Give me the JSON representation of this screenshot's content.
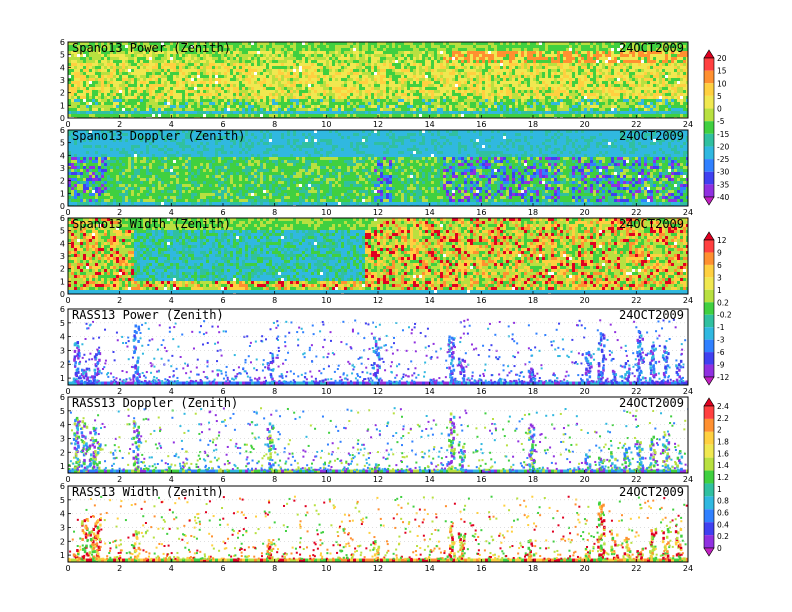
{
  "chart_data": [
    {
      "type": "heatmap",
      "title": "Spano13 Power (Zenith)",
      "date": "24OCT2009",
      "x_ticks": [
        "0",
        "2",
        "4",
        "6",
        "8",
        "10",
        "12",
        "14",
        "16",
        "18",
        "20",
        "22",
        "24"
      ],
      "y_ticks": [
        "0",
        "1",
        "2",
        "3",
        "4",
        "5",
        "6"
      ],
      "xlim": [
        0,
        24
      ],
      "ylim": [
        0,
        6
      ],
      "colorbar": "power",
      "grid": false,
      "description_bands": [
        {
          "y_from": 0,
          "y_to": 0.3,
          "value": 0
        },
        {
          "y_from": 0.3,
          "y_to": 1.5,
          "value": -5
        },
        {
          "y_from": 1.5,
          "y_to": 4.5,
          "value": 5
        },
        {
          "y_from": 4.5,
          "y_to": 6,
          "value": 0
        }
      ]
    },
    {
      "type": "heatmap",
      "title": "Spano13 Doppler (Zenith)",
      "date": "24OCT2009",
      "x_ticks": [
        "0",
        "2",
        "4",
        "6",
        "8",
        "10",
        "12",
        "14",
        "16",
        "18",
        "20",
        "22",
        "24"
      ],
      "y_ticks": [
        "0",
        "1",
        "2",
        "3",
        "4",
        "5",
        "6"
      ],
      "xlim": [
        0,
        24
      ],
      "ylim": [
        0,
        6
      ],
      "colorbar": "power"
    },
    {
      "type": "heatmap",
      "title": "Spano13 Width (Zenith)",
      "date": "24OCT2009",
      "x_ticks": [
        "0",
        "2",
        "4",
        "6",
        "8",
        "10",
        "12",
        "14",
        "16",
        "18",
        "20",
        "22",
        "24"
      ],
      "y_ticks": [
        "0",
        "1",
        "2",
        "3",
        "4",
        "5",
        "6"
      ],
      "xlim": [
        0,
        24
      ],
      "ylim": [
        0,
        6
      ],
      "colorbar": "width"
    },
    {
      "type": "heatmap",
      "title": "RASS13 Power (Zenith)",
      "date": "24OCT2009",
      "x_ticks": [
        "0",
        "2",
        "4",
        "6",
        "8",
        "10",
        "12",
        "14",
        "16",
        "18",
        "20",
        "22",
        "24"
      ],
      "y_ticks": [
        "1",
        "2",
        "3",
        "4",
        "5",
        "6"
      ],
      "xlim": [
        0,
        24
      ],
      "ylim": [
        0.5,
        6
      ],
      "colorbar": "width"
    },
    {
      "type": "heatmap",
      "title": "RASS13 Doppler (Zenith)",
      "date": "24OCT2009",
      "x_ticks": [
        "0",
        "2",
        "4",
        "6",
        "8",
        "10",
        "12",
        "14",
        "16",
        "18",
        "20",
        "22",
        "24"
      ],
      "y_ticks": [
        "1",
        "2",
        "3",
        "4",
        "5",
        "6"
      ],
      "xlim": [
        0,
        24
      ],
      "ylim": [
        0.5,
        6
      ],
      "colorbar": "rass"
    },
    {
      "type": "heatmap",
      "title": "RASS13 Width (Zenith)",
      "date": "24OCT2009",
      "x_ticks": [
        "0",
        "2",
        "4",
        "6",
        "8",
        "10",
        "12",
        "14",
        "16",
        "18",
        "20",
        "22",
        "24"
      ],
      "y_ticks": [
        "1",
        "2",
        "3",
        "4",
        "5",
        "6"
      ],
      "xlim": [
        0,
        24
      ],
      "ylim": [
        0.5,
        6
      ],
      "colorbar": "rass"
    }
  ],
  "colorbars": {
    "power": {
      "labels": [
        "20",
        "15",
        "10",
        "5",
        "0",
        "-5",
        "-15",
        "-20",
        "-25",
        "-30",
        "-35",
        "-40"
      ],
      "colors": [
        "#e00020",
        "#ff4040",
        "#ff9030",
        "#ffd040",
        "#f0e850",
        "#b8e040",
        "#40d040",
        "#30c0a0",
        "#30b8e0",
        "#3080ff",
        "#4040f0",
        "#9030e0",
        "#c020c0"
      ]
    },
    "width": {
      "labels": [
        "12",
        "9",
        "6",
        "3",
        "1",
        "0.2",
        "-0.2",
        "-1",
        "-3",
        "-6",
        "-9",
        "-12"
      ],
      "colors": [
        "#e00020",
        "#ff4040",
        "#ff9030",
        "#ffd040",
        "#f0e850",
        "#b8e040",
        "#40d040",
        "#30c0a0",
        "#30b8e0",
        "#3080ff",
        "#4040f0",
        "#9030e0",
        "#c020c0"
      ]
    },
    "rass": {
      "labels": [
        "2.4",
        "2.2",
        "2",
        "1.8",
        "1.6",
        "1.4",
        "1.2",
        "1",
        "0.8",
        "0.6",
        "0.4",
        "0.2",
        "0"
      ],
      "colors": [
        "#e00020",
        "#ff4040",
        "#ff9030",
        "#ffd040",
        "#f0e850",
        "#b8e040",
        "#40d040",
        "#30c0a0",
        "#30b8e0",
        "#3080ff",
        "#4040f0",
        "#9030e0",
        "#c020c0"
      ]
    }
  }
}
